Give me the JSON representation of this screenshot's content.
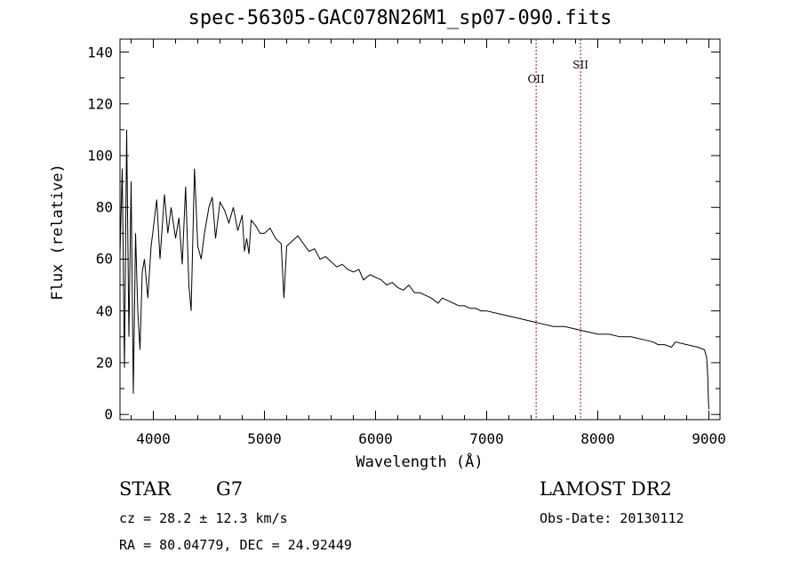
{
  "chart_data": {
    "type": "line",
    "title": "spec-56305-GAC078N26M1_sp07-090.fits",
    "xlabel": "Wavelength (Å)",
    "ylabel": "Flux (relative)",
    "xlim": [
      3700,
      9100
    ],
    "ylim": [
      -2,
      145
    ],
    "xticks": [
      4000,
      5000,
      6000,
      7000,
      8000,
      9000
    ],
    "yticks": [
      0,
      20,
      40,
      60,
      80,
      100,
      120,
      140
    ],
    "x_tick_labels": [
      "4000",
      "5000",
      "6000",
      "7000",
      "8000",
      "9000"
    ],
    "y_tick_labels": [
      "0",
      "20",
      "40",
      "60",
      "80",
      "100",
      "120",
      "140"
    ],
    "series": [
      {
        "x": [
          3700,
          3720,
          3740,
          3760,
          3780,
          3800,
          3820,
          3840,
          3860,
          3880,
          3900,
          3920,
          3950,
          3980,
          4000,
          4030,
          4060,
          4100,
          4130,
          4160,
          4200,
          4230,
          4260,
          4290,
          4320,
          4340,
          4370,
          4400,
          4430,
          4460,
          4500,
          4530,
          4560,
          4600,
          4640,
          4680,
          4720,
          4760,
          4800,
          4820,
          4840,
          4861,
          4880,
          4920,
          4960,
          5000,
          5050,
          5100,
          5150,
          5175,
          5200,
          5250,
          5300,
          5350,
          5400,
          5450,
          5500,
          5550,
          5600,
          5650,
          5700,
          5750,
          5800,
          5850,
          5890,
          5950,
          6000,
          6050,
          6100,
          6150,
          6200,
          6250,
          6300,
          6350,
          6400,
          6450,
          6500,
          6563,
          6600,
          6650,
          6700,
          6750,
          6800,
          6850,
          6900,
          6950,
          7000,
          7100,
          7200,
          7300,
          7400,
          7500,
          7600,
          7700,
          7800,
          7900,
          8000,
          8100,
          8200,
          8300,
          8400,
          8498,
          8542,
          8600,
          8662,
          8700,
          8800,
          8900,
          8960,
          8980,
          8990,
          8995,
          9000
        ],
        "y": [
          62,
          95,
          18,
          110,
          30,
          90,
          8,
          70,
          40,
          25,
          55,
          60,
          45,
          65,
          72,
          83,
          60,
          85,
          70,
          80,
          68,
          76,
          58,
          88,
          50,
          40,
          95,
          65,
          60,
          70,
          80,
          84,
          68,
          82,
          79,
          74,
          80,
          71,
          77,
          63,
          68,
          62,
          75,
          73,
          70,
          70,
          72,
          68,
          66,
          45,
          65,
          67,
          69,
          66,
          63,
          64,
          60,
          61,
          59,
          57,
          58,
          56,
          55,
          56,
          52,
          54,
          53,
          52,
          50,
          51,
          49,
          48,
          50,
          47,
          47,
          46,
          45,
          43,
          45,
          44,
          43,
          42,
          42,
          41,
          41,
          40,
          40,
          39,
          38,
          37,
          36,
          35,
          34,
          34,
          33,
          32,
          31,
          31,
          30,
          30,
          29,
          28,
          27,
          27,
          26,
          28,
          27,
          26,
          25,
          22,
          14,
          6,
          2
        ]
      }
    ],
    "reference_lines": [
      {
        "label": "OII",
        "x": 7445
      },
      {
        "label": "SII",
        "x": 7845
      }
    ],
    "grid": false,
    "legend": "none"
  },
  "info": {
    "object_class": "STAR",
    "subclass": "G7",
    "survey": "LAMOST DR2",
    "velocity": "cz =  28.2 ± 12.3 km/s",
    "obs_date": "Obs-Date: 20130112",
    "coords": "RA =  80.04779, DEC =  24.92449"
  },
  "colors": {
    "spectrum": "#000000",
    "reference_line": "#8b1a1a",
    "axis": "#000000"
  }
}
